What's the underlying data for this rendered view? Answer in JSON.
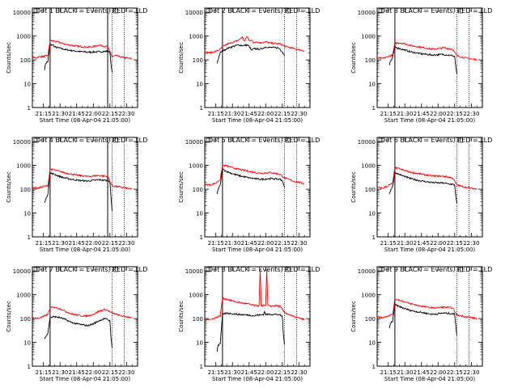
{
  "figure": {
    "ylabel": "Counts/sec",
    "xlabel": "Start Time (08-Apr-04 21:05:00)",
    "xticks": [
      "21:15",
      "21:30",
      "21:45",
      "22:00",
      "22:15",
      "22:30"
    ],
    "yticks": [
      "1",
      "10",
      "100",
      "1000",
      "10000"
    ],
    "colors": {
      "events": "#000000",
      "lld": "#ff0000"
    }
  },
  "chart_data": [
    {
      "type": "line",
      "title": "Det 1 BLACK = Events, RED = LLD",
      "x_unit": "minutes since 21:05",
      "xlim": [
        0,
        95
      ],
      "ylim": [
        1,
        15000
      ],
      "yscale": "log",
      "series": [
        {
          "name": "Events",
          "color": "black",
          "x": [
            11,
            12,
            13,
            14,
            16,
            19,
            20,
            25,
            30,
            40,
            50,
            60,
            68,
            70,
            71,
            72
          ],
          "y": [
            40,
            70,
            80,
            85,
            420,
            420,
            350,
            310,
            270,
            230,
            210,
            220,
            230,
            220,
            60,
            30
          ]
        },
        {
          "name": "LLD",
          "color": "red",
          "x": [
            0,
            3,
            6,
            10,
            14,
            16,
            20,
            25,
            30,
            40,
            50,
            55,
            60,
            68,
            72,
            75,
            80,
            85,
            90
          ],
          "y": [
            130,
            120,
            135,
            140,
            150,
            650,
            600,
            530,
            450,
            380,
            340,
            360,
            420,
            350,
            140,
            150,
            130,
            120,
            110
          ]
        }
      ],
      "vlines_solid": [
        16,
        68
      ],
      "vlines_dotted": [
        72,
        83
      ]
    },
    {
      "type": "line",
      "title": "Det 2 BLACK = Events, RED = LLD",
      "x_unit": "minutes since 21:05",
      "xlim": [
        0,
        95
      ],
      "ylim": [
        1,
        15000
      ],
      "yscale": "log",
      "series": [
        {
          "name": "Events",
          "color": "black",
          "x": [
            11,
            12,
            13,
            14,
            16,
            20,
            25,
            30,
            35,
            38,
            40,
            42,
            45,
            50,
            55,
            60,
            66,
            68,
            70,
            72
          ],
          "y": [
            70,
            100,
            150,
            200,
            240,
            300,
            360,
            420,
            400,
            420,
            380,
            250,
            300,
            280,
            350,
            330,
            320,
            280,
            220,
            150
          ]
        },
        {
          "name": "LLD",
          "color": "red",
          "x": [
            0,
            5,
            10,
            14,
            16,
            20,
            25,
            30,
            34,
            36,
            38,
            40,
            42,
            44,
            46,
            50,
            55,
            60,
            68,
            72,
            80,
            90
          ],
          "y": [
            210,
            200,
            230,
            280,
            350,
            450,
            550,
            650,
            900,
            600,
            1000,
            650,
            700,
            500,
            600,
            520,
            560,
            500,
            470,
            380,
            300,
            240
          ]
        }
      ],
      "vlines_solid": [
        16
      ],
      "vlines_dotted": [
        72,
        83
      ]
    },
    {
      "type": "line",
      "title": "Det 3 BLACK = Events, RED = LLD",
      "x_unit": "minutes since 21:05",
      "xlim": [
        0,
        95
      ],
      "ylim": [
        1,
        15000
      ],
      "yscale": "log",
      "series": [
        {
          "name": "Events",
          "color": "black",
          "x": [
            11,
            12,
            13,
            14,
            16,
            20,
            25,
            30,
            40,
            50,
            60,
            68,
            70,
            71,
            72
          ],
          "y": [
            60,
            90,
            100,
            130,
            350,
            300,
            260,
            220,
            180,
            160,
            170,
            150,
            140,
            50,
            25
          ]
        },
        {
          "name": "LLD",
          "color": "red",
          "x": [
            0,
            5,
            10,
            14,
            16,
            20,
            25,
            30,
            40,
            50,
            60,
            68,
            72,
            80,
            90
          ],
          "y": [
            120,
            115,
            140,
            160,
            500,
            520,
            480,
            400,
            340,
            280,
            320,
            280,
            150,
            120,
            100
          ]
        }
      ],
      "vlines_solid": [
        16
      ],
      "vlines_dotted": [
        72,
        83
      ]
    },
    {
      "type": "line",
      "title": "Det 4 BLACK = Events, RED = LLD",
      "x_unit": "minutes since 21:05",
      "xlim": [
        0,
        95
      ],
      "ylim": [
        1,
        15000
      ],
      "yscale": "log",
      "series": [
        {
          "name": "Events",
          "color": "black",
          "x": [
            11,
            12,
            13,
            14,
            16,
            20,
            25,
            30,
            40,
            50,
            60,
            68,
            70,
            71,
            72
          ],
          "y": [
            25,
            40,
            50,
            60,
            480,
            420,
            340,
            290,
            240,
            220,
            250,
            230,
            210,
            45,
            12
          ]
        },
        {
          "name": "LLD",
          "color": "red",
          "x": [
            0,
            5,
            10,
            14,
            16,
            20,
            25,
            30,
            40,
            50,
            60,
            68,
            72,
            80,
            90
          ],
          "y": [
            120,
            110,
            130,
            140,
            680,
            650,
            550,
            480,
            390,
            340,
            380,
            340,
            140,
            120,
            100
          ]
        }
      ],
      "vlines_solid": [
        16,
        68
      ],
      "vlines_dotted": [
        72,
        83
      ]
    },
    {
      "type": "line",
      "title": "Det 5 BLACK = Events, RED = LLD",
      "x_unit": "minutes since 21:05",
      "xlim": [
        0,
        95
      ],
      "ylim": [
        1,
        15000
      ],
      "yscale": "log",
      "series": [
        {
          "name": "Events",
          "color": "black",
          "x": [
            11,
            12,
            13,
            14,
            16,
            20,
            25,
            30,
            40,
            50,
            60,
            68,
            70,
            72
          ],
          "y": [
            60,
            100,
            120,
            150,
            700,
            550,
            450,
            380,
            300,
            260,
            280,
            260,
            230,
            120
          ]
        },
        {
          "name": "LLD",
          "color": "red",
          "x": [
            0,
            5,
            10,
            14,
            16,
            20,
            25,
            30,
            40,
            50,
            60,
            68,
            72,
            80,
            90
          ],
          "y": [
            160,
            150,
            180,
            260,
            1000,
            950,
            800,
            700,
            560,
            470,
            500,
            420,
            300,
            220,
            170
          ]
        }
      ],
      "vlines_solid": [
        16
      ],
      "vlines_dotted": [
        72,
        83
      ]
    },
    {
      "type": "line",
      "title": "Det 6 BLACK = Events, RED = LLD",
      "x_unit": "minutes since 21:05",
      "xlim": [
        0,
        95
      ],
      "ylim": [
        1,
        15000
      ],
      "yscale": "log",
      "series": [
        {
          "name": "Events",
          "color": "black",
          "x": [
            11,
            12,
            13,
            14,
            16,
            20,
            25,
            30,
            40,
            50,
            60,
            68,
            70,
            71,
            72
          ],
          "y": [
            60,
            90,
            110,
            130,
            500,
            420,
            340,
            280,
            220,
            190,
            180,
            160,
            150,
            50,
            25
          ]
        },
        {
          "name": "LLD",
          "color": "red",
          "x": [
            0,
            5,
            10,
            14,
            16,
            20,
            25,
            30,
            40,
            50,
            60,
            68,
            72,
            80,
            90
          ],
          "y": [
            120,
            110,
            140,
            180,
            800,
            720,
            600,
            520,
            430,
            360,
            350,
            300,
            150,
            120,
            100
          ]
        }
      ],
      "vlines_solid": [
        16
      ],
      "vlines_dotted": [
        72,
        83
      ]
    },
    {
      "type": "line",
      "title": "Det 7 BLACK = Events, RED = LLD",
      "x_unit": "minutes since 21:05",
      "xlim": [
        0,
        95
      ],
      "ylim": [
        1,
        15000
      ],
      "yscale": "log",
      "series": [
        {
          "name": "Events",
          "color": "black",
          "x": [
            11,
            12,
            13,
            14,
            16,
            20,
            25,
            30,
            35,
            40,
            45,
            50,
            55,
            60,
            65,
            68,
            70,
            71,
            72
          ],
          "y": [
            15,
            18,
            20,
            25,
            110,
            120,
            110,
            90,
            70,
            60,
            55,
            50,
            60,
            80,
            100,
            90,
            80,
            15,
            6
          ]
        },
        {
          "name": "LLD",
          "color": "red",
          "x": [
            0,
            5,
            10,
            14,
            16,
            20,
            25,
            30,
            35,
            40,
            45,
            50,
            55,
            60,
            65,
            68,
            72,
            80,
            90
          ],
          "y": [
            110,
            100,
            120,
            150,
            280,
            300,
            260,
            200,
            160,
            140,
            130,
            130,
            150,
            200,
            240,
            220,
            170,
            130,
            110
          ]
        }
      ],
      "vlines_solid": [
        16
      ],
      "vlines_dotted": [
        72,
        83
      ]
    },
    {
      "type": "line",
      "title": "Det 8 BLACK = Events, RED = LLD",
      "x_unit": "minutes since 21:05",
      "xlim": [
        0,
        95
      ],
      "ylim": [
        1,
        15000
      ],
      "yscale": "log",
      "series": [
        {
          "name": "Events",
          "color": "black",
          "x": [
            11,
            12,
            13,
            14,
            16,
            20,
            25,
            30,
            40,
            45,
            47,
            50,
            53,
            54,
            55,
            60,
            65,
            68,
            70,
            71,
            72
          ],
          "y": [
            4,
            7,
            8,
            9,
            150,
            170,
            160,
            150,
            140,
            130,
            140,
            140,
            150,
            190,
            150,
            150,
            150,
            140,
            120,
            20,
            8
          ]
        },
        {
          "name": "LLD",
          "color": "red",
          "x": [
            0,
            5,
            10,
            14,
            16,
            20,
            25,
            30,
            40,
            45,
            49,
            50,
            51,
            53,
            55,
            56,
            57,
            60,
            65,
            68,
            72,
            80,
            90
          ],
          "y": [
            100,
            90,
            110,
            130,
            700,
            650,
            550,
            480,
            400,
            350,
            350,
            12000,
            350,
            350,
            350,
            12000,
            350,
            330,
            350,
            320,
            180,
            120,
            90
          ]
        }
      ],
      "vlines_solid": [
        16
      ],
      "vlines_dotted": [
        72,
        83
      ]
    },
    {
      "type": "line",
      "title": "Det 9 BLACK = Events, RED = LLD",
      "x_unit": "minutes since 21:05",
      "xlim": [
        0,
        95
      ],
      "ylim": [
        1,
        15000
      ],
      "yscale": "log",
      "series": [
        {
          "name": "Events",
          "color": "black",
          "x": [
            11,
            12,
            13,
            14,
            16,
            20,
            25,
            30,
            40,
            50,
            60,
            68,
            70,
            71,
            72
          ],
          "y": [
            40,
            60,
            70,
            80,
            380,
            320,
            260,
            220,
            180,
            150,
            170,
            160,
            150,
            50,
            20
          ]
        },
        {
          "name": "LLD",
          "color": "red",
          "x": [
            0,
            5,
            10,
            14,
            16,
            20,
            25,
            30,
            40,
            50,
            60,
            68,
            72,
            80,
            90
          ],
          "y": [
            120,
            110,
            130,
            150,
            650,
            600,
            500,
            420,
            330,
            280,
            300,
            280,
            140,
            120,
            100
          ]
        }
      ],
      "vlines_solid": [
        16
      ],
      "vlines_dotted": [
        72,
        83
      ]
    }
  ]
}
